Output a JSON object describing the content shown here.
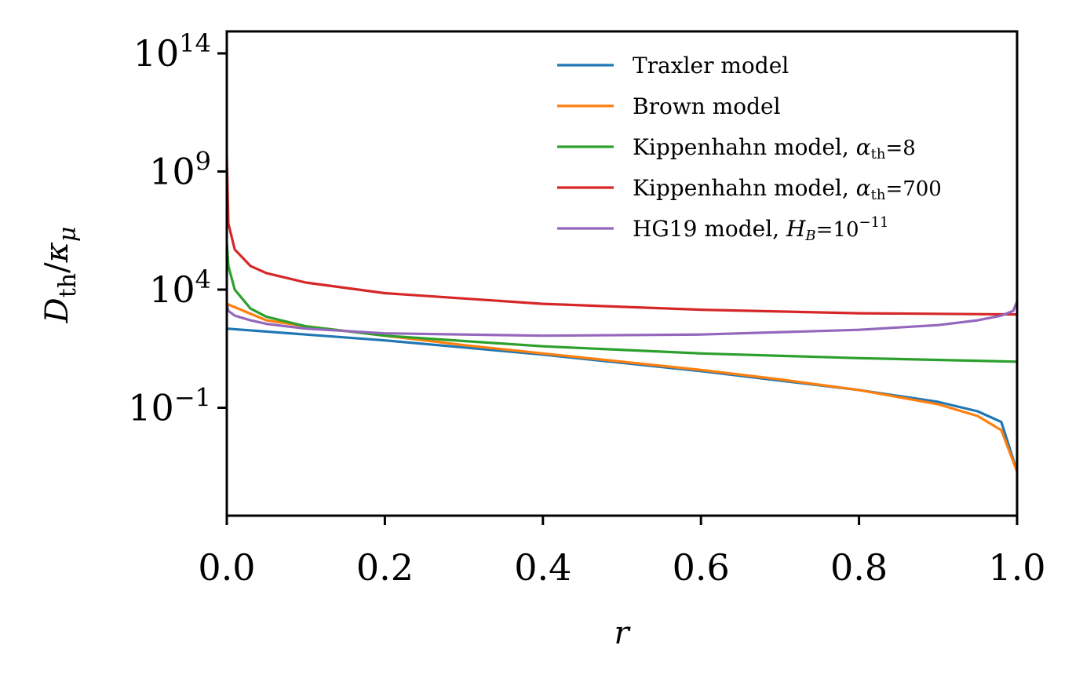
{
  "chart_data": {
    "type": "line",
    "xlabel": "r",
    "ylabel": "D_th/κ_μ",
    "x_scale": "linear",
    "y_scale": "log",
    "xlim": [
      0.0,
      1.0
    ],
    "ylim_log10": [
      -5.6,
      15
    ],
    "x_ticks": [
      0.0,
      0.2,
      0.4,
      0.6,
      0.8,
      1.0
    ],
    "x_tick_labels": [
      "0.0",
      "0.2",
      "0.4",
      "0.6",
      "0.8",
      "1.0"
    ],
    "y_ticks_log10": [
      -1,
      4,
      9,
      14
    ],
    "y_tick_labels": [
      {
        "base": "10",
        "exp": "−1"
      },
      {
        "base": "10",
        "exp": "4"
      },
      {
        "base": "10",
        "exp": "9"
      },
      {
        "base": "10",
        "exp": "14"
      }
    ],
    "grid": false,
    "legend_position": "top-right",
    "series": [
      {
        "name": "Traxler model",
        "color": "#1f77b4",
        "x": [
          0.0,
          0.1,
          0.2,
          0.3,
          0.4,
          0.5,
          0.6,
          0.7,
          0.8,
          0.9,
          0.95,
          0.98,
          1.0
        ],
        "log10_y": [
          2.35,
          2.1,
          1.85,
          1.55,
          1.25,
          0.9,
          0.55,
          0.15,
          -0.25,
          -0.75,
          -1.15,
          -1.6,
          -3.7
        ]
      },
      {
        "name": "Brown model",
        "color": "#ff7f0e",
        "x": [
          0.0,
          0.05,
          0.1,
          0.2,
          0.3,
          0.4,
          0.5,
          0.6,
          0.7,
          0.8,
          0.9,
          0.95,
          0.98,
          1.0
        ],
        "log10_y": [
          3.4,
          2.7,
          2.45,
          2.05,
          1.65,
          1.3,
          0.95,
          0.6,
          0.2,
          -0.25,
          -0.85,
          -1.35,
          -1.95,
          -3.7
        ]
      },
      {
        "name": "Kippenhahn model, α_th = 8",
        "label_parts": {
          "main": "Kippenhahn model,",
          "param": "α",
          "sub": "th",
          "rel": "=8"
        },
        "color": "#2ca02c",
        "x": [
          0.0,
          0.002,
          0.01,
          0.03,
          0.05,
          0.1,
          0.2,
          0.4,
          0.6,
          0.8,
          1.0
        ],
        "log10_y": [
          6.0,
          5.0,
          4.0,
          3.2,
          2.85,
          2.45,
          2.05,
          1.6,
          1.3,
          1.1,
          0.95
        ]
      },
      {
        "name": "Kippenhahn model, α_th = 700",
        "label_parts": {
          "main": "Kippenhahn model,",
          "param": "α",
          "sub": "th",
          "rel": "=700"
        },
        "color": "#d62728",
        "x": [
          0.0,
          0.002,
          0.01,
          0.03,
          0.05,
          0.1,
          0.2,
          0.4,
          0.6,
          0.8,
          1.0
        ],
        "log10_y": [
          9.6,
          6.8,
          5.7,
          5.0,
          4.7,
          4.3,
          3.85,
          3.4,
          3.15,
          3.0,
          2.95
        ]
      },
      {
        "name": "HG19 model, H_B = 10^−11",
        "label_parts": {
          "main": "HG19 model,",
          "param": "H",
          "sub": "B",
          "rel": "=10",
          "sup": "−11"
        },
        "color": "#9467bd",
        "x": [
          0.0,
          0.002,
          0.01,
          0.03,
          0.05,
          0.1,
          0.2,
          0.4,
          0.6,
          0.8,
          0.9,
          0.95,
          0.98,
          0.995,
          1.0
        ],
        "log10_y": [
          3.4,
          3.1,
          2.9,
          2.7,
          2.55,
          2.35,
          2.15,
          2.05,
          2.1,
          2.3,
          2.5,
          2.7,
          2.9,
          3.1,
          3.5
        ]
      }
    ]
  }
}
